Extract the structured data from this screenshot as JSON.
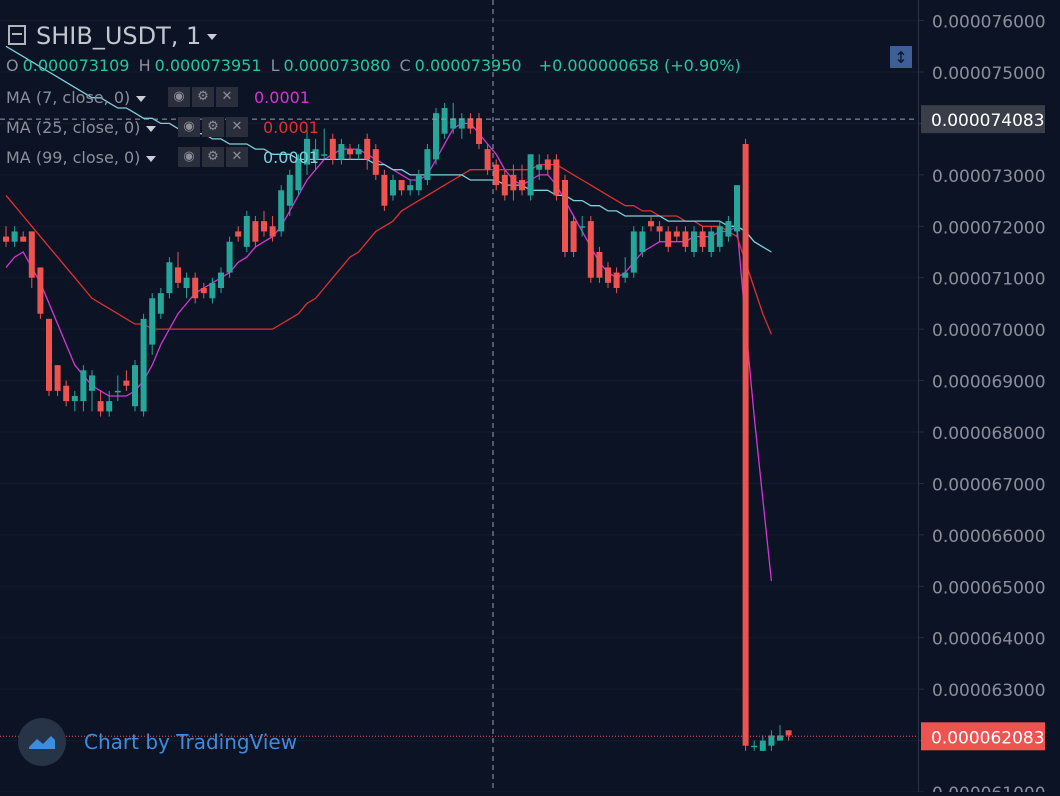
{
  "header": {
    "symbol": "SHIB_USDT, 1",
    "ohlc": {
      "o_label": "O",
      "o": "0.000073109",
      "h_label": "H",
      "h": "0.000073951",
      "l_label": "L",
      "l": "0.000073080",
      "c_label": "C",
      "c": "0.000073950",
      "change": "+0.000000658 (+0.90%)"
    }
  },
  "indicators": [
    {
      "label": "MA (7, close, 0)",
      "value": "0.0001",
      "color": "#d535d5"
    },
    {
      "label": "MA (25, close, 0)",
      "value": "0.0001",
      "color": "#e0302f"
    },
    {
      "label": "MA (99, close, 0)",
      "value": "0.0001",
      "color": "#7fd0da"
    }
  ],
  "watermark": "Chart by TradingView",
  "colors": {
    "up": "#26a69a",
    "down": "#ef5350",
    "background": "#0b1325"
  },
  "chart_data": {
    "type": "candlestick",
    "title": "SHIB_USDT, 1",
    "ylim": [
      6.1e-05,
      7.64e-05
    ],
    "y_ticks": [
      "0.000076000",
      "0.000075000",
      "0.000074000",
      "0.000073000",
      "0.000072000",
      "0.000071000",
      "0.000070000",
      "0.000069000",
      "0.000068000",
      "0.000067000",
      "0.000066000",
      "0.000065000",
      "0.000064000",
      "0.000063000",
      "0.000062000",
      "0.000061000"
    ],
    "y_tick_values": [
      7.6e-05,
      7.5e-05,
      7.4e-05,
      7.3e-05,
      7.2e-05,
      7.1e-05,
      7e-05,
      6.9e-05,
      6.8e-05,
      6.7e-05,
      6.6e-05,
      6.5e-05,
      6.4e-05,
      6.3e-05,
      6.2e-05,
      6.1e-05
    ],
    "crosshair_price_label": "0.000074083",
    "crosshair_price": 7.4083e-05,
    "last_price_label": "0.000062083",
    "last_price": 6.2083e-05,
    "candles": [
      {
        "o": 7.18e-05,
        "h": 7.2e-05,
        "l": 7.16e-05,
        "c": 7.17e-05
      },
      {
        "o": 7.17e-05,
        "h": 7.2e-05,
        "l": 7.16e-05,
        "c": 7.19e-05
      },
      {
        "o": 7.18e-05,
        "h": 7.19e-05,
        "l": 7.17e-05,
        "c": 7.17e-05
      },
      {
        "o": 7.19e-05,
        "h": 7.19e-05,
        "l": 7.08e-05,
        "c": 7.1e-05
      },
      {
        "o": 7.12e-05,
        "h": 7.12e-05,
        "l": 7.02e-05,
        "c": 7.03e-05
      },
      {
        "o": 7.02e-05,
        "h": 7.02e-05,
        "l": 6.87e-05,
        "c": 6.88e-05
      },
      {
        "o": 6.93e-05,
        "h": 6.93e-05,
        "l": 6.87e-05,
        "c": 6.88e-05
      },
      {
        "o": 6.89e-05,
        "h": 6.9e-05,
        "l": 6.85e-05,
        "c": 6.86e-05
      },
      {
        "o": 6.86e-05,
        "h": 6.88e-05,
        "l": 6.84e-05,
        "c": 6.87e-05
      },
      {
        "o": 6.86e-05,
        "h": 6.93e-05,
        "l": 6.84e-05,
        "c": 6.92e-05
      },
      {
        "o": 6.88e-05,
        "h": 6.92e-05,
        "l": 6.84e-05,
        "c": 6.91e-05
      },
      {
        "o": 6.86e-05,
        "h": 6.88e-05,
        "l": 6.83e-05,
        "c": 6.84e-05
      },
      {
        "o": 6.84e-05,
        "h": 6.88e-05,
        "l": 6.83e-05,
        "c": 6.86e-05
      },
      {
        "o": 6.88e-05,
        "h": 6.91e-05,
        "l": 6.86e-05,
        "c": 6.88e-05
      },
      {
        "o": 6.9e-05,
        "h": 6.92e-05,
        "l": 6.88e-05,
        "c": 6.89e-05
      },
      {
        "o": 6.85e-05,
        "h": 6.94e-05,
        "l": 6.84e-05,
        "c": 6.93e-05
      },
      {
        "o": 6.84e-05,
        "h": 7.03e-05,
        "l": 6.83e-05,
        "c": 7.02e-05
      },
      {
        "o": 6.97e-05,
        "h": 7.07e-05,
        "l": 6.95e-05,
        "c": 7.06e-05
      },
      {
        "o": 7.03e-05,
        "h": 7.08e-05,
        "l": 7.02e-05,
        "c": 7.07e-05
      },
      {
        "o": 7.07e-05,
        "h": 7.14e-05,
        "l": 7.06e-05,
        "c": 7.13e-05
      },
      {
        "o": 7.12e-05,
        "h": 7.15e-05,
        "l": 7.08e-05,
        "c": 7.09e-05
      },
      {
        "o": 7.08e-05,
        "h": 7.11e-05,
        "l": 7.06e-05,
        "c": 7.1e-05
      },
      {
        "o": 7.1e-05,
        "h": 7.11e-05,
        "l": 7.05e-05,
        "c": 7.06e-05
      },
      {
        "o": 7.08e-05,
        "h": 7.09e-05,
        "l": 7.06e-05,
        "c": 7.07e-05
      },
      {
        "o": 7.06e-05,
        "h": 7.1e-05,
        "l": 7.05e-05,
        "c": 7.09e-05
      },
      {
        "o": 7.08e-05,
        "h": 7.12e-05,
        "l": 7.07e-05,
        "c": 7.11e-05
      },
      {
        "o": 7.11e-05,
        "h": 7.18e-05,
        "l": 7.1e-05,
        "c": 7.17e-05
      },
      {
        "o": 7.19e-05,
        "h": 7.2e-05,
        "l": 7.17e-05,
        "c": 7.18e-05
      },
      {
        "o": 7.16e-05,
        "h": 7.23e-05,
        "l": 7.15e-05,
        "c": 7.22e-05
      },
      {
        "o": 7.21e-05,
        "h": 7.22e-05,
        "l": 7.16e-05,
        "c": 7.17e-05
      },
      {
        "o": 7.21e-05,
        "h": 7.23e-05,
        "l": 7.18e-05,
        "c": 7.19e-05
      },
      {
        "o": 7.2e-05,
        "h": 7.22e-05,
        "l": 7.17e-05,
        "c": 7.18e-05
      },
      {
        "o": 7.19e-05,
        "h": 7.28e-05,
        "l": 7.18e-05,
        "c": 7.27e-05
      },
      {
        "o": 7.24e-05,
        "h": 7.31e-05,
        "l": 7.22e-05,
        "c": 7.3e-05
      },
      {
        "o": 7.27e-05,
        "h": 7.34e-05,
        "l": 7.26e-05,
        "c": 7.33e-05
      },
      {
        "o": 7.32e-05,
        "h": 7.39e-05,
        "l": 7.3e-05,
        "c": 7.37e-05
      },
      {
        "o": 7.33e-05,
        "h": 7.37e-05,
        "l": 7.31e-05,
        "c": 7.35e-05
      },
      {
        "o": 7.34e-05,
        "h": 7.39e-05,
        "l": 7.33e-05,
        "c": 7.34e-05
      },
      {
        "o": 7.37e-05,
        "h": 7.38e-05,
        "l": 7.32e-05,
        "c": 7.33e-05
      },
      {
        "o": 7.33e-05,
        "h": 7.37e-05,
        "l": 7.32e-05,
        "c": 7.36e-05
      },
      {
        "o": 7.35e-05,
        "h": 7.36e-05,
        "l": 7.33e-05,
        "c": 7.34e-05
      },
      {
        "o": 7.34e-05,
        "h": 7.36e-05,
        "l": 7.33e-05,
        "c": 7.35e-05
      },
      {
        "o": 7.37e-05,
        "h": 7.38e-05,
        "l": 7.31e-05,
        "c": 7.33e-05
      },
      {
        "o": 7.35e-05,
        "h": 7.36e-05,
        "l": 7.29e-05,
        "c": 7.3e-05
      },
      {
        "o": 7.3e-05,
        "h": 7.31e-05,
        "l": 7.23e-05,
        "c": 7.24e-05
      },
      {
        "o": 7.26e-05,
        "h": 7.3e-05,
        "l": 7.25e-05,
        "c": 7.29e-05
      },
      {
        "o": 7.29e-05,
        "h": 7.29e-05,
        "l": 7.26e-05,
        "c": 7.27e-05
      },
      {
        "o": 7.27e-05,
        "h": 7.29e-05,
        "l": 7.26e-05,
        "c": 7.28e-05
      },
      {
        "o": 7.27e-05,
        "h": 7.31e-05,
        "l": 7.26e-05,
        "c": 7.3e-05
      },
      {
        "o": 7.29e-05,
        "h": 7.36e-05,
        "l": 7.28e-05,
        "c": 7.35e-05
      },
      {
        "o": 7.33e-05,
        "h": 7.43e-05,
        "l": 7.32e-05,
        "c": 7.42e-05
      },
      {
        "o": 7.38e-05,
        "h": 7.44e-05,
        "l": 7.37e-05,
        "c": 7.43e-05
      },
      {
        "o": 7.39e-05,
        "h": 7.44e-05,
        "l": 7.38e-05,
        "c": 7.41e-05
      },
      {
        "o": 7.39e-05,
        "h": 7.42e-05,
        "l": 7.37e-05,
        "c": 7.41e-05
      },
      {
        "o": 7.41e-05,
        "h": 7.42e-05,
        "l": 7.38e-05,
        "c": 7.39e-05
      },
      {
        "o": 7.41e-05,
        "h": 7.42e-05,
        "l": 7.35e-05,
        "c": 7.36e-05
      },
      {
        "o": 7.35e-05,
        "h": 7.36e-05,
        "l": 7.3e-05,
        "c": 7.31e-05
      },
      {
        "o": 7.32e-05,
        "h": 7.33e-05,
        "l": 7.27e-05,
        "c": 7.28e-05
      },
      {
        "o": 7.3e-05,
        "h": 7.31e-05,
        "l": 7.25e-05,
        "c": 7.26e-05
      },
      {
        "o": 7.3e-05,
        "h": 7.32e-05,
        "l": 7.25e-05,
        "c": 7.27e-05
      },
      {
        "o": 7.29e-05,
        "h": 7.32e-05,
        "l": 7.26e-05,
        "c": 7.27e-05
      },
      {
        "o": 7.26e-05,
        "h": 7.34e-05,
        "l": 7.25e-05,
        "c": 7.34e-05
      },
      {
        "o": 7.31e-05,
        "h": 7.34e-05,
        "l": 7.29e-05,
        "c": 7.32e-05
      },
      {
        "o": 7.33e-05,
        "h": 7.34e-05,
        "l": 7.3e-05,
        "c": 7.31e-05
      },
      {
        "o": 7.33e-05,
        "h": 7.34e-05,
        "l": 7.25e-05,
        "c": 7.26e-05
      },
      {
        "o": 7.29e-05,
        "h": 7.3e-05,
        "l": 7.14e-05,
        "c": 7.15e-05
      },
      {
        "o": 7.21e-05,
        "h": 7.22e-05,
        "l": 7.14e-05,
        "c": 7.15e-05
      },
      {
        "o": 7.2e-05,
        "h": 7.22e-05,
        "l": 7.18e-05,
        "c": 7.2e-05
      },
      {
        "o": 7.21e-05,
        "h": 7.22e-05,
        "l": 7.09e-05,
        "c": 7.1e-05
      },
      {
        "o": 7.15e-05,
        "h": 7.16e-05,
        "l": 7.09e-05,
        "c": 7.1e-05
      },
      {
        "o": 7.12e-05,
        "h": 7.13e-05,
        "l": 7.08e-05,
        "c": 7.09e-05
      },
      {
        "o": 7.11e-05,
        "h": 7.12e-05,
        "l": 7.07e-05,
        "c": 7.08e-05
      },
      {
        "o": 7.1e-05,
        "h": 7.14e-05,
        "l": 7.09e-05,
        "c": 7.11e-05
      },
      {
        "o": 7.11e-05,
        "h": 7.2e-05,
        "l": 7.1e-05,
        "c": 7.19e-05
      },
      {
        "o": 7.15e-05,
        "h": 7.2e-05,
        "l": 7.14e-05,
        "c": 7.19e-05
      },
      {
        "o": 7.21e-05,
        "h": 7.22e-05,
        "l": 7.19e-05,
        "c": 7.2e-05
      },
      {
        "o": 7.2e-05,
        "h": 7.21e-05,
        "l": 7.17e-05,
        "c": 7.19e-05
      },
      {
        "o": 7.19e-05,
        "h": 7.2e-05,
        "l": 7.15e-05,
        "c": 7.16e-05
      },
      {
        "o": 7.19e-05,
        "h": 7.2e-05,
        "l": 7.17e-05,
        "c": 7.18e-05
      },
      {
        "o": 7.19e-05,
        "h": 7.2e-05,
        "l": 7.15e-05,
        "c": 7.16e-05
      },
      {
        "o": 7.15e-05,
        "h": 7.2e-05,
        "l": 7.14e-05,
        "c": 7.19e-05
      },
      {
        "o": 7.19e-05,
        "h": 7.2e-05,
        "l": 7.15e-05,
        "c": 7.16e-05
      },
      {
        "o": 7.15e-05,
        "h": 7.2e-05,
        "l": 7.14e-05,
        "c": 7.19e-05
      },
      {
        "o": 7.16e-05,
        "h": 7.21e-05,
        "l": 7.15e-05,
        "c": 7.2e-05
      },
      {
        "o": 7.18e-05,
        "h": 7.22e-05,
        "l": 7.17e-05,
        "c": 7.21e-05
      },
      {
        "o": 7.19e-05,
        "h": 7.28e-05,
        "l": 7.18e-05,
        "c": 7.28e-05
      },
      {
        "o": 7.36e-05,
        "h": 7.37e-05,
        "l": 6.18e-05,
        "c": 6.19e-05
      },
      {
        "o": 6.19e-05,
        "h": 6.2e-05,
        "l": 6.18e-05,
        "c": 6.19e-05
      },
      {
        "o": 6.18e-05,
        "h": 6.21e-05,
        "l": 6.18e-05,
        "c": 6.2e-05
      },
      {
        "o": 6.19e-05,
        "h": 6.22e-05,
        "l": 6.18e-05,
        "c": 6.21e-05
      },
      {
        "o": 6.2e-05,
        "h": 6.23e-05,
        "l": 6.2e-05,
        "c": 6.21e-05
      },
      {
        "o": 6.22e-05,
        "h": 6.22e-05,
        "l": 6.2e-05,
        "c": 6.21e-05
      }
    ],
    "moving_averages": [
      {
        "name": "MA (7, close, 0)",
        "color": "#d535d5",
        "values": [
          7.12e-05,
          7.14e-05,
          7.15e-05,
          7.12e-05,
          7.09e-05,
          7.05e-05,
          7.01e-05,
          6.97e-05,
          6.93e-05,
          6.91e-05,
          6.89e-05,
          6.88e-05,
          6.87e-05,
          6.87e-05,
          6.87e-05,
          6.88e-05,
          6.9e-05,
          6.93e-05,
          6.97e-05,
          7e-05,
          7.03e-05,
          7.05e-05,
          7.07e-05,
          7.08e-05,
          7.09e-05,
          7.1e-05,
          7.11e-05,
          7.13e-05,
          7.14e-05,
          7.16e-05,
          7.17e-05,
          7.18e-05,
          7.2e-05,
          7.23e-05,
          7.26e-05,
          7.29e-05,
          7.31e-05,
          7.33e-05,
          7.34e-05,
          7.35e-05,
          7.35e-05,
          7.35e-05,
          7.34e-05,
          7.33e-05,
          7.32e-05,
          7.31e-05,
          7.3e-05,
          7.29e-05,
          7.29e-05,
          7.3e-05,
          7.33e-05,
          7.36e-05,
          7.39e-05,
          7.4e-05,
          7.4e-05,
          7.38e-05,
          7.36e-05,
          7.34e-05,
          7.31e-05,
          7.29e-05,
          7.28e-05,
          7.29e-05,
          7.3e-05,
          7.3e-05,
          7.28e-05,
          7.25e-05,
          7.22e-05,
          7.19e-05,
          7.16e-05,
          7.13e-05,
          7.11e-05,
          7.1e-05,
          7.11e-05,
          7.13e-05,
          7.15e-05,
          7.16e-05,
          7.17e-05,
          7.17e-05,
          7.17e-05,
          7.17e-05,
          7.18e-05,
          7.18e-05,
          7.18e-05,
          7.19e-05,
          7.19e-05,
          7.2e-05,
          7.01e-05,
          6.83e-05,
          6.67e-05,
          6.51e-05
        ]
      },
      {
        "name": "MA (25, close, 0)",
        "color": "#e0302f",
        "values": [
          7.26e-05,
          7.24e-05,
          7.22e-05,
          7.2e-05,
          7.18e-05,
          7.16e-05,
          7.14e-05,
          7.12e-05,
          7.1e-05,
          7.08e-05,
          7.06e-05,
          7.05e-05,
          7.04e-05,
          7.03e-05,
          7.02e-05,
          7.01e-05,
          7.01e-05,
          7e-05,
          7e-05,
          7e-05,
          7e-05,
          7e-05,
          7e-05,
          7e-05,
          7e-05,
          7e-05,
          7e-05,
          7e-05,
          7e-05,
          7e-05,
          7e-05,
          7e-05,
          7.01e-05,
          7.02e-05,
          7.03e-05,
          7.05e-05,
          7.06e-05,
          7.08e-05,
          7.1e-05,
          7.12e-05,
          7.14e-05,
          7.15e-05,
          7.17e-05,
          7.19e-05,
          7.2e-05,
          7.21e-05,
          7.23e-05,
          7.24e-05,
          7.25e-05,
          7.26e-05,
          7.27e-05,
          7.28e-05,
          7.29e-05,
          7.3e-05,
          7.31e-05,
          7.31e-05,
          7.31e-05,
          7.31e-05,
          7.31e-05,
          7.31e-05,
          7.31e-05,
          7.31e-05,
          7.32e-05,
          7.32e-05,
          7.32e-05,
          7.31e-05,
          7.3e-05,
          7.29e-05,
          7.28e-05,
          7.27e-05,
          7.26e-05,
          7.25e-05,
          7.24e-05,
          7.24e-05,
          7.23e-05,
          7.23e-05,
          7.22e-05,
          7.22e-05,
          7.22e-05,
          7.21e-05,
          7.21e-05,
          7.2e-05,
          7.2e-05,
          7.2e-05,
          7.19e-05,
          7.18e-05,
          7.13e-05,
          7.08e-05,
          7.03e-05,
          6.99e-05
        ]
      },
      {
        "name": "MA (99, close, 0)",
        "color": "#7fd0da",
        "values": [
          7.55e-05,
          7.54e-05,
          7.53e-05,
          7.52e-05,
          7.51e-05,
          7.5e-05,
          7.49e-05,
          7.48e-05,
          7.47e-05,
          7.46e-05,
          7.45e-05,
          7.45e-05,
          7.44e-05,
          7.43e-05,
          7.43e-05,
          7.42e-05,
          7.41e-05,
          7.41e-05,
          7.4e-05,
          7.4e-05,
          7.39e-05,
          7.39e-05,
          7.38e-05,
          7.38e-05,
          7.37e-05,
          7.37e-05,
          7.36e-05,
          7.36e-05,
          7.36e-05,
          7.35e-05,
          7.35e-05,
          7.34e-05,
          7.34e-05,
          7.34e-05,
          7.33e-05,
          7.33e-05,
          7.33e-05,
          7.33e-05,
          7.33e-05,
          7.33e-05,
          7.33e-05,
          7.33e-05,
          7.33e-05,
          7.32e-05,
          7.32e-05,
          7.31e-05,
          7.31e-05,
          7.3e-05,
          7.3e-05,
          7.3e-05,
          7.3e-05,
          7.3e-05,
          7.3e-05,
          7.3e-05,
          7.29e-05,
          7.29e-05,
          7.29e-05,
          7.29e-05,
          7.28e-05,
          7.28e-05,
          7.28e-05,
          7.27e-05,
          7.27e-05,
          7.27e-05,
          7.26e-05,
          7.26e-05,
          7.25e-05,
          7.25e-05,
          7.24e-05,
          7.24e-05,
          7.23e-05,
          7.23e-05,
          7.22e-05,
          7.22e-05,
          7.22e-05,
          7.22e-05,
          7.22e-05,
          7.21e-05,
          7.21e-05,
          7.21e-05,
          7.21e-05,
          7.21e-05,
          7.21e-05,
          7.21e-05,
          7.2e-05,
          7.2e-05,
          7.19e-05,
          7.17e-05,
          7.16e-05,
          7.15e-05
        ]
      }
    ]
  }
}
